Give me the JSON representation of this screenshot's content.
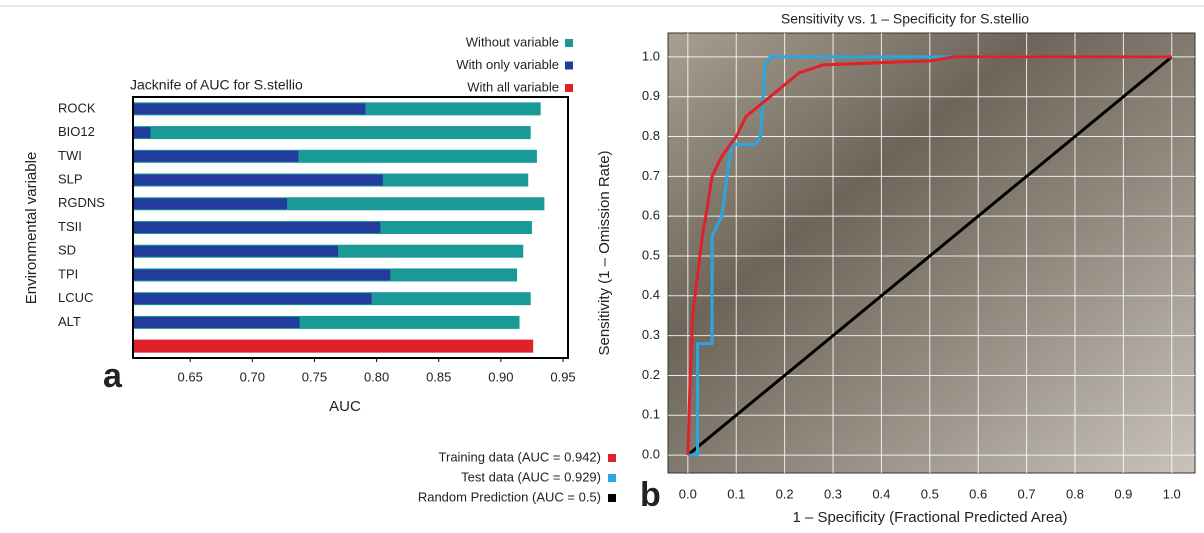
{
  "chart_data": [
    {
      "type": "barh",
      "title": "Jacknife of AUC for S.stellio",
      "xlabel": "AUC",
      "ylabel": "Environmental variable",
      "annotation": "a",
      "categories": [
        "ROCK",
        "BIO12",
        "TWI",
        "SLP",
        "RGDNS",
        "TSII",
        "SD",
        "TPI",
        "LCUC",
        "ALT",
        null
      ],
      "series": [
        {
          "name": "Without variable",
          "color": "#1a9a96",
          "values": [
            0.932,
            0.924,
            0.929,
            0.922,
            0.935,
            0.925,
            0.918,
            0.913,
            0.924,
            0.915,
            null
          ]
        },
        {
          "name": "With only variable",
          "color": "#213c9c",
          "values": [
            0.791,
            0.618,
            0.737,
            0.805,
            0.728,
            0.803,
            0.769,
            0.811,
            0.796,
            0.738,
            null
          ]
        },
        {
          "name": "With all variable",
          "color": "#e0202a",
          "values": [
            null,
            null,
            null,
            null,
            null,
            null,
            null,
            null,
            null,
            null,
            0.926
          ]
        }
      ],
      "xlim": [
        0.604,
        0.954
      ],
      "xticks": [
        0.65,
        {
          "value": 0.7,
          "label": "0.70"
        },
        0.75,
        {
          "value": 0.8,
          "label": "0.80"
        },
        0.85,
        {
          "value": 0.9,
          "label": "0.90"
        },
        0.95
      ],
      "legend": "top-right"
    },
    {
      "type": "line",
      "title": "Sensitivity vs. 1 – Specificity for S.stellio",
      "xlabel": "1 – Specificity (Fractional Predicted Area)",
      "ylabel": "Sensitivity (1 – Omission Rate)",
      "annotation": "b",
      "series": [
        {
          "name": "Training data (AUC = 0.942)",
          "color": "#e0202a",
          "x": [
            0,
            0.005,
            0.01,
            0.02,
            0.03,
            0.04,
            0.05,
            0.07,
            0.1,
            0.12,
            0.15,
            0.17,
            0.2,
            0.23,
            0.28,
            0.5,
            0.55,
            1
          ],
          "values": [
            0,
            0.2,
            0.35,
            0.45,
            0.55,
            0.62,
            0.7,
            0.75,
            0.8,
            0.85,
            0.88,
            0.9,
            0.93,
            0.96,
            0.98,
            0.99,
            1,
            1
          ]
        },
        {
          "name": "Test data (AUC = 0.929)",
          "color": "#2aa7e0",
          "x": [
            0,
            0.02,
            0.02,
            0.05,
            0.05,
            0.07,
            0.09,
            0.14,
            0.15,
            0.16,
            0.17,
            1
          ],
          "values": [
            0,
            0,
            0.28,
            0.28,
            0.55,
            0.6,
            0.78,
            0.78,
            0.8,
            0.98,
            1,
            1
          ]
        },
        {
          "name": "Random Prediction (AUC = 0.5)",
          "color": "#000000",
          "x": [
            0,
            1
          ],
          "values": [
            0,
            1
          ]
        }
      ],
      "xlim": [
        -0.041,
        1.048
      ],
      "ylim": [
        -0.045,
        1.06
      ],
      "xticks": [
        {
          "value": 0,
          "label": "0.0"
        },
        0.1,
        0.2,
        0.3,
        0.4,
        0.5,
        0.6,
        0.7,
        0.8,
        0.9,
        {
          "value": 1,
          "label": "1.0"
        }
      ],
      "yticks": [
        {
          "value": 0,
          "label": "0.0"
        },
        0.1,
        0.2,
        0.3,
        0.4,
        0.5,
        0.6,
        0.7,
        0.8,
        0.9,
        {
          "value": 1,
          "label": "1.0"
        }
      ],
      "grid": true,
      "legend": "bottom-left"
    }
  ]
}
